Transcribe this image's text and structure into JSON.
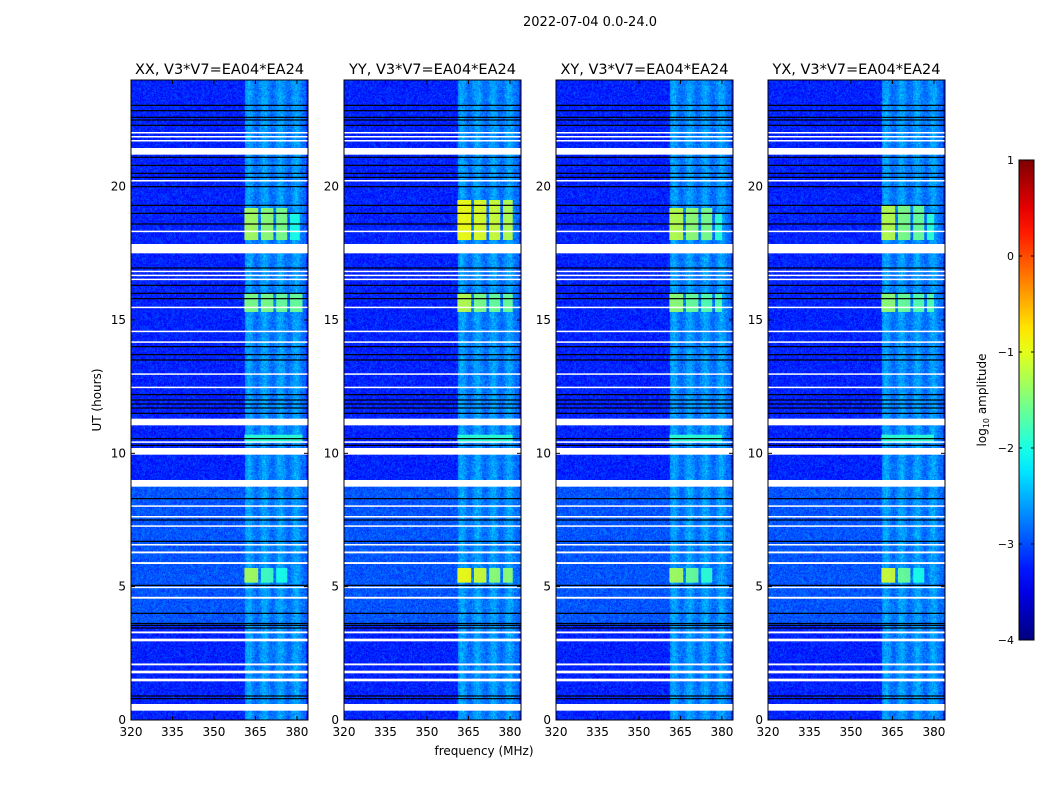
{
  "chart_data": {
    "type": "heatmap",
    "suptitle": "2022-07-04 0.0-24.0",
    "xlabel": "frequency (MHz)",
    "ylabel": "UT (hours)",
    "xlim": [
      320,
      384
    ],
    "ylim": [
      0,
      24
    ],
    "xticks": [
      320,
      335,
      350,
      365,
      380
    ],
    "yticks": [
      0,
      5,
      10,
      15,
      20
    ],
    "colorbar": {
      "label": "log10 amplitude",
      "label_main": "log",
      "label_sub": "10",
      "label_rest": " amplitude",
      "range": [
        -4,
        1
      ],
      "ticks": [
        1,
        0,
        -1,
        -2,
        -3,
        -4
      ],
      "colormap": "jet"
    },
    "background_level": -3.2,
    "rfi_band": {
      "freq_range": [
        361,
        383
      ],
      "level": -2.7
    },
    "flagged_white_hours": [
      [
        0.35,
        0.6
      ],
      [
        1.45,
        1.55
      ],
      [
        1.75,
        1.85
      ],
      [
        2.05,
        2.12
      ],
      [
        2.95,
        3.05
      ],
      [
        3.25,
        3.32
      ],
      [
        4.55,
        4.62
      ],
      [
        4.95,
        5.0
      ],
      [
        5.85,
        5.92
      ],
      [
        6.25,
        6.32
      ],
      [
        6.55,
        6.6
      ],
      [
        7.25,
        7.3
      ],
      [
        7.6,
        7.65
      ],
      [
        8.0,
        8.05
      ],
      [
        8.75,
        9.0
      ],
      [
        9.95,
        10.2
      ],
      [
        10.4,
        10.45
      ],
      [
        11.05,
        11.3
      ],
      [
        12.45,
        12.5
      ],
      [
        12.95,
        13.0
      ],
      [
        14.15,
        14.2
      ],
      [
        14.55,
        14.6
      ],
      [
        15.45,
        15.5
      ],
      [
        16.5,
        16.55
      ],
      [
        16.65,
        16.7
      ],
      [
        16.8,
        16.85
      ],
      [
        17.5,
        17.85
      ],
      [
        18.3,
        18.35
      ],
      [
        20.2,
        20.25
      ],
      [
        21.2,
        21.45
      ],
      [
        21.7,
        21.75
      ],
      [
        21.85,
        21.9
      ],
      [
        22.0,
        22.05
      ]
    ],
    "flagged_black_hours": [
      0.8,
      0.9,
      3.45,
      3.55,
      3.62,
      4.0,
      5.05,
      6.7,
      7.5,
      8.3,
      10.3,
      10.55,
      11.5,
      11.7,
      11.85,
      12.0,
      12.2,
      13.5,
      13.7,
      14.0,
      15.8,
      16.0,
      16.3,
      16.95,
      18.6,
      19.0,
      19.3,
      20.0,
      20.35,
      20.5,
      20.8,
      21.1,
      22.3,
      22.5,
      22.6,
      22.85,
      23.05
    ],
    "panels": [
      {
        "title": "XX, V3*V7=EA04*EA24",
        "patches": [
          {
            "t": [
              18.0,
              19.2
            ],
            "f": [
              361,
              366
            ],
            "value": -1.3
          },
          {
            "t": [
              18.0,
              19.2
            ],
            "f": [
              367,
              371.5
            ],
            "value": -1.4
          },
          {
            "t": [
              18.0,
              19.2
            ],
            "f": [
              372.5,
              376.5
            ],
            "value": -1.5
          },
          {
            "t": [
              18.0,
              19.0
            ],
            "f": [
              377.5,
              381
            ],
            "value": -2.0
          },
          {
            "t": [
              15.3,
              16.0
            ],
            "f": [
              361,
              366
            ],
            "value": -1.5
          },
          {
            "t": [
              15.3,
              16.0
            ],
            "f": [
              367,
              371.5
            ],
            "value": -1.5
          },
          {
            "t": [
              15.3,
              16.0
            ],
            "f": [
              372.5,
              376.5
            ],
            "value": -1.6
          },
          {
            "t": [
              15.3,
              16.0
            ],
            "f": [
              377.5,
              382
            ],
            "value": -1.6
          },
          {
            "t": [
              10.45,
              10.7
            ],
            "f": [
              361,
              382
            ],
            "value": -1.9
          },
          {
            "t": [
              5.15,
              5.7
            ],
            "f": [
              361,
              366
            ],
            "value": -1.3
          },
          {
            "t": [
              5.15,
              5.7
            ],
            "f": [
              367,
              371.5
            ],
            "value": -1.8
          },
          {
            "t": [
              5.15,
              5.7
            ],
            "f": [
              372.5,
              376.5
            ],
            "value": -2.0
          }
        ]
      },
      {
        "title": "YY, V3*V7=EA04*EA24",
        "patches": [
          {
            "t": [
              18.0,
              19.5
            ],
            "f": [
              361,
              366
            ],
            "value": -0.9
          },
          {
            "t": [
              18.0,
              19.5
            ],
            "f": [
              367,
              371.5
            ],
            "value": -1.0
          },
          {
            "t": [
              18.0,
              19.5
            ],
            "f": [
              372.5,
              376.5
            ],
            "value": -1.1
          },
          {
            "t": [
              18.0,
              19.5
            ],
            "f": [
              377.5,
              381
            ],
            "value": -1.2
          },
          {
            "t": [
              15.3,
              16.0
            ],
            "f": [
              361,
              366
            ],
            "value": -1.2
          },
          {
            "t": [
              15.3,
              16.0
            ],
            "f": [
              367,
              371.5
            ],
            "value": -1.5
          },
          {
            "t": [
              15.3,
              16.0
            ],
            "f": [
              372.5,
              376.5
            ],
            "value": -1.6
          },
          {
            "t": [
              15.3,
              16.0
            ],
            "f": [
              377.5,
              381
            ],
            "value": -1.6
          },
          {
            "t": [
              10.45,
              10.7
            ],
            "f": [
              361,
              381
            ],
            "value": -1.9
          },
          {
            "t": [
              5.15,
              5.7
            ],
            "f": [
              361,
              366
            ],
            "value": -0.9
          },
          {
            "t": [
              5.15,
              5.7
            ],
            "f": [
              367,
              371.5
            ],
            "value": -1.1
          },
          {
            "t": [
              5.15,
              5.7
            ],
            "f": [
              372.5,
              376.5
            ],
            "value": -1.4
          },
          {
            "t": [
              5.15,
              5.7
            ],
            "f": [
              377.5,
              381
            ],
            "value": -1.4
          }
        ]
      },
      {
        "title": "XY, V3*V7=EA04*EA24",
        "patches": [
          {
            "t": [
              18.0,
              19.2
            ],
            "f": [
              361,
              366
            ],
            "value": -1.2
          },
          {
            "t": [
              18.0,
              19.2
            ],
            "f": [
              367,
              371.5
            ],
            "value": -1.4
          },
          {
            "t": [
              18.0,
              19.2
            ],
            "f": [
              372.5,
              376.5
            ],
            "value": -1.5
          },
          {
            "t": [
              18.0,
              19.0
            ],
            "f": [
              377.5,
              380
            ],
            "value": -1.9
          },
          {
            "t": [
              15.3,
              16.0
            ],
            "f": [
              361,
              366
            ],
            "value": -1.4
          },
          {
            "t": [
              15.3,
              16.0
            ],
            "f": [
              367,
              371.5
            ],
            "value": -1.6
          },
          {
            "t": [
              15.3,
              16.0
            ],
            "f": [
              372.5,
              376.5
            ],
            "value": -1.7
          },
          {
            "t": [
              15.3,
              16.0
            ],
            "f": [
              377.5,
              380
            ],
            "value": -1.7
          },
          {
            "t": [
              10.45,
              10.7
            ],
            "f": [
              361,
              380
            ],
            "value": -1.9
          },
          {
            "t": [
              5.15,
              5.7
            ],
            "f": [
              361,
              366
            ],
            "value": -1.3
          },
          {
            "t": [
              5.15,
              5.7
            ],
            "f": [
              367,
              371.5
            ],
            "value": -1.6
          },
          {
            "t": [
              5.15,
              5.7
            ],
            "f": [
              372.5,
              376.5
            ],
            "value": -1.9
          }
        ]
      },
      {
        "title": "YX, V3*V7=EA04*EA24",
        "patches": [
          {
            "t": [
              18.0,
              19.3
            ],
            "f": [
              361,
              366
            ],
            "value": -1.2
          },
          {
            "t": [
              18.0,
              19.3
            ],
            "f": [
              367,
              371.5
            ],
            "value": -1.5
          },
          {
            "t": [
              18.0,
              19.3
            ],
            "f": [
              372.5,
              376.5
            ],
            "value": -1.6
          },
          {
            "t": [
              18.0,
              19.0
            ],
            "f": [
              377.5,
              380
            ],
            "value": -1.9
          },
          {
            "t": [
              15.3,
              16.0
            ],
            "f": [
              361,
              366
            ],
            "value": -1.4
          },
          {
            "t": [
              15.3,
              16.0
            ],
            "f": [
              367,
              371.5
            ],
            "value": -1.6
          },
          {
            "t": [
              15.3,
              16.0
            ],
            "f": [
              372.5,
              376.5
            ],
            "value": -1.7
          },
          {
            "t": [
              15.3,
              16.0
            ],
            "f": [
              377.5,
              380
            ],
            "value": -1.7
          },
          {
            "t": [
              10.45,
              10.7
            ],
            "f": [
              361,
              380
            ],
            "value": -1.9
          },
          {
            "t": [
              5.15,
              5.7
            ],
            "f": [
              361,
              366
            ],
            "value": -1.1
          },
          {
            "t": [
              5.15,
              5.7
            ],
            "f": [
              367,
              371.5
            ],
            "value": -1.6
          },
          {
            "t": [
              5.15,
              5.7
            ],
            "f": [
              372.5,
              376.5
            ],
            "value": -2.0
          }
        ]
      }
    ]
  }
}
